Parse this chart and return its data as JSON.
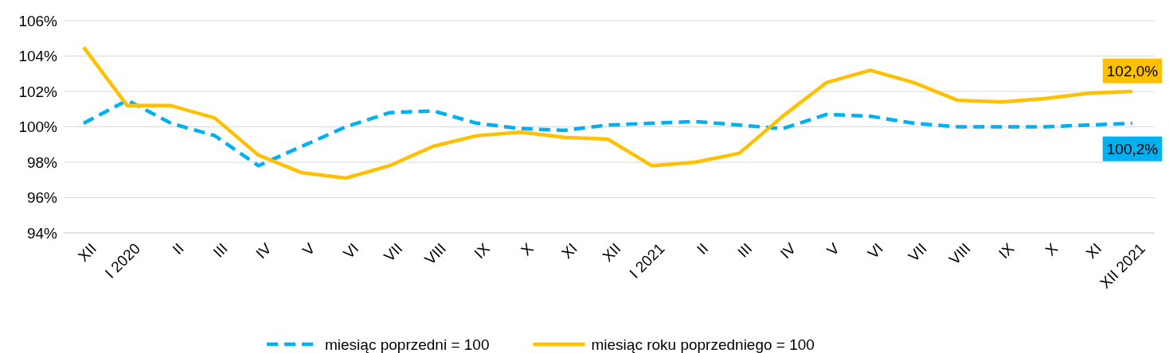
{
  "chart_data": {
    "type": "line",
    "categories": [
      "XII",
      "I 2020",
      "II",
      "III",
      "IV",
      "V",
      "VI",
      "VII",
      "VIII",
      "IX",
      "X",
      "XI",
      "XII",
      "I 2021",
      "II",
      "III",
      "IV",
      "V",
      "VI",
      "VII",
      "VIII",
      "IX",
      "X",
      "XI",
      "XII 2021"
    ],
    "series": [
      {
        "name": "miesiąc poprzedni = 100",
        "color": "#00b0f0",
        "line_style": "dashed",
        "values": [
          100.2,
          101.5,
          100.2,
          99.5,
          97.8,
          98.9,
          100.0,
          100.8,
          100.9,
          100.2,
          99.9,
          99.8,
          100.1,
          100.2,
          100.3,
          100.1,
          99.9,
          100.7,
          100.6,
          100.2,
          100.0,
          100.0,
          100.0,
          100.1,
          100.2
        ]
      },
      {
        "name": "miesiąc roku poprzedniego = 100",
        "color": "#ffc000",
        "line_style": "solid",
        "values": [
          104.5,
          101.2,
          101.2,
          100.5,
          98.4,
          97.4,
          97.1,
          97.8,
          98.9,
          99.5,
          99.7,
          99.4,
          99.3,
          97.8,
          98.0,
          98.5,
          100.6,
          102.5,
          103.2,
          102.5,
          101.5,
          101.4,
          101.6,
          101.9,
          102.0
        ]
      }
    ],
    "ylim": [
      94,
      106
    ],
    "yticks": [
      {
        "value": 94,
        "label": "94%"
      },
      {
        "value": 96,
        "label": "96%"
      },
      {
        "value": 98,
        "label": "98%"
      },
      {
        "value": 100,
        "label": "100%"
      },
      {
        "value": 102,
        "label": "102%"
      },
      {
        "value": 104,
        "label": "104%"
      },
      {
        "value": 106,
        "label": "106%"
      }
    ],
    "grid": "y",
    "legend": "bottom",
    "marker": "none",
    "annotations": [
      {
        "text": "102,0%",
        "x": "XII 2021",
        "y": 102.0
      },
      {
        "text": "100,2%",
        "x": "XII 2021",
        "y": 100.2
      }
    ]
  }
}
